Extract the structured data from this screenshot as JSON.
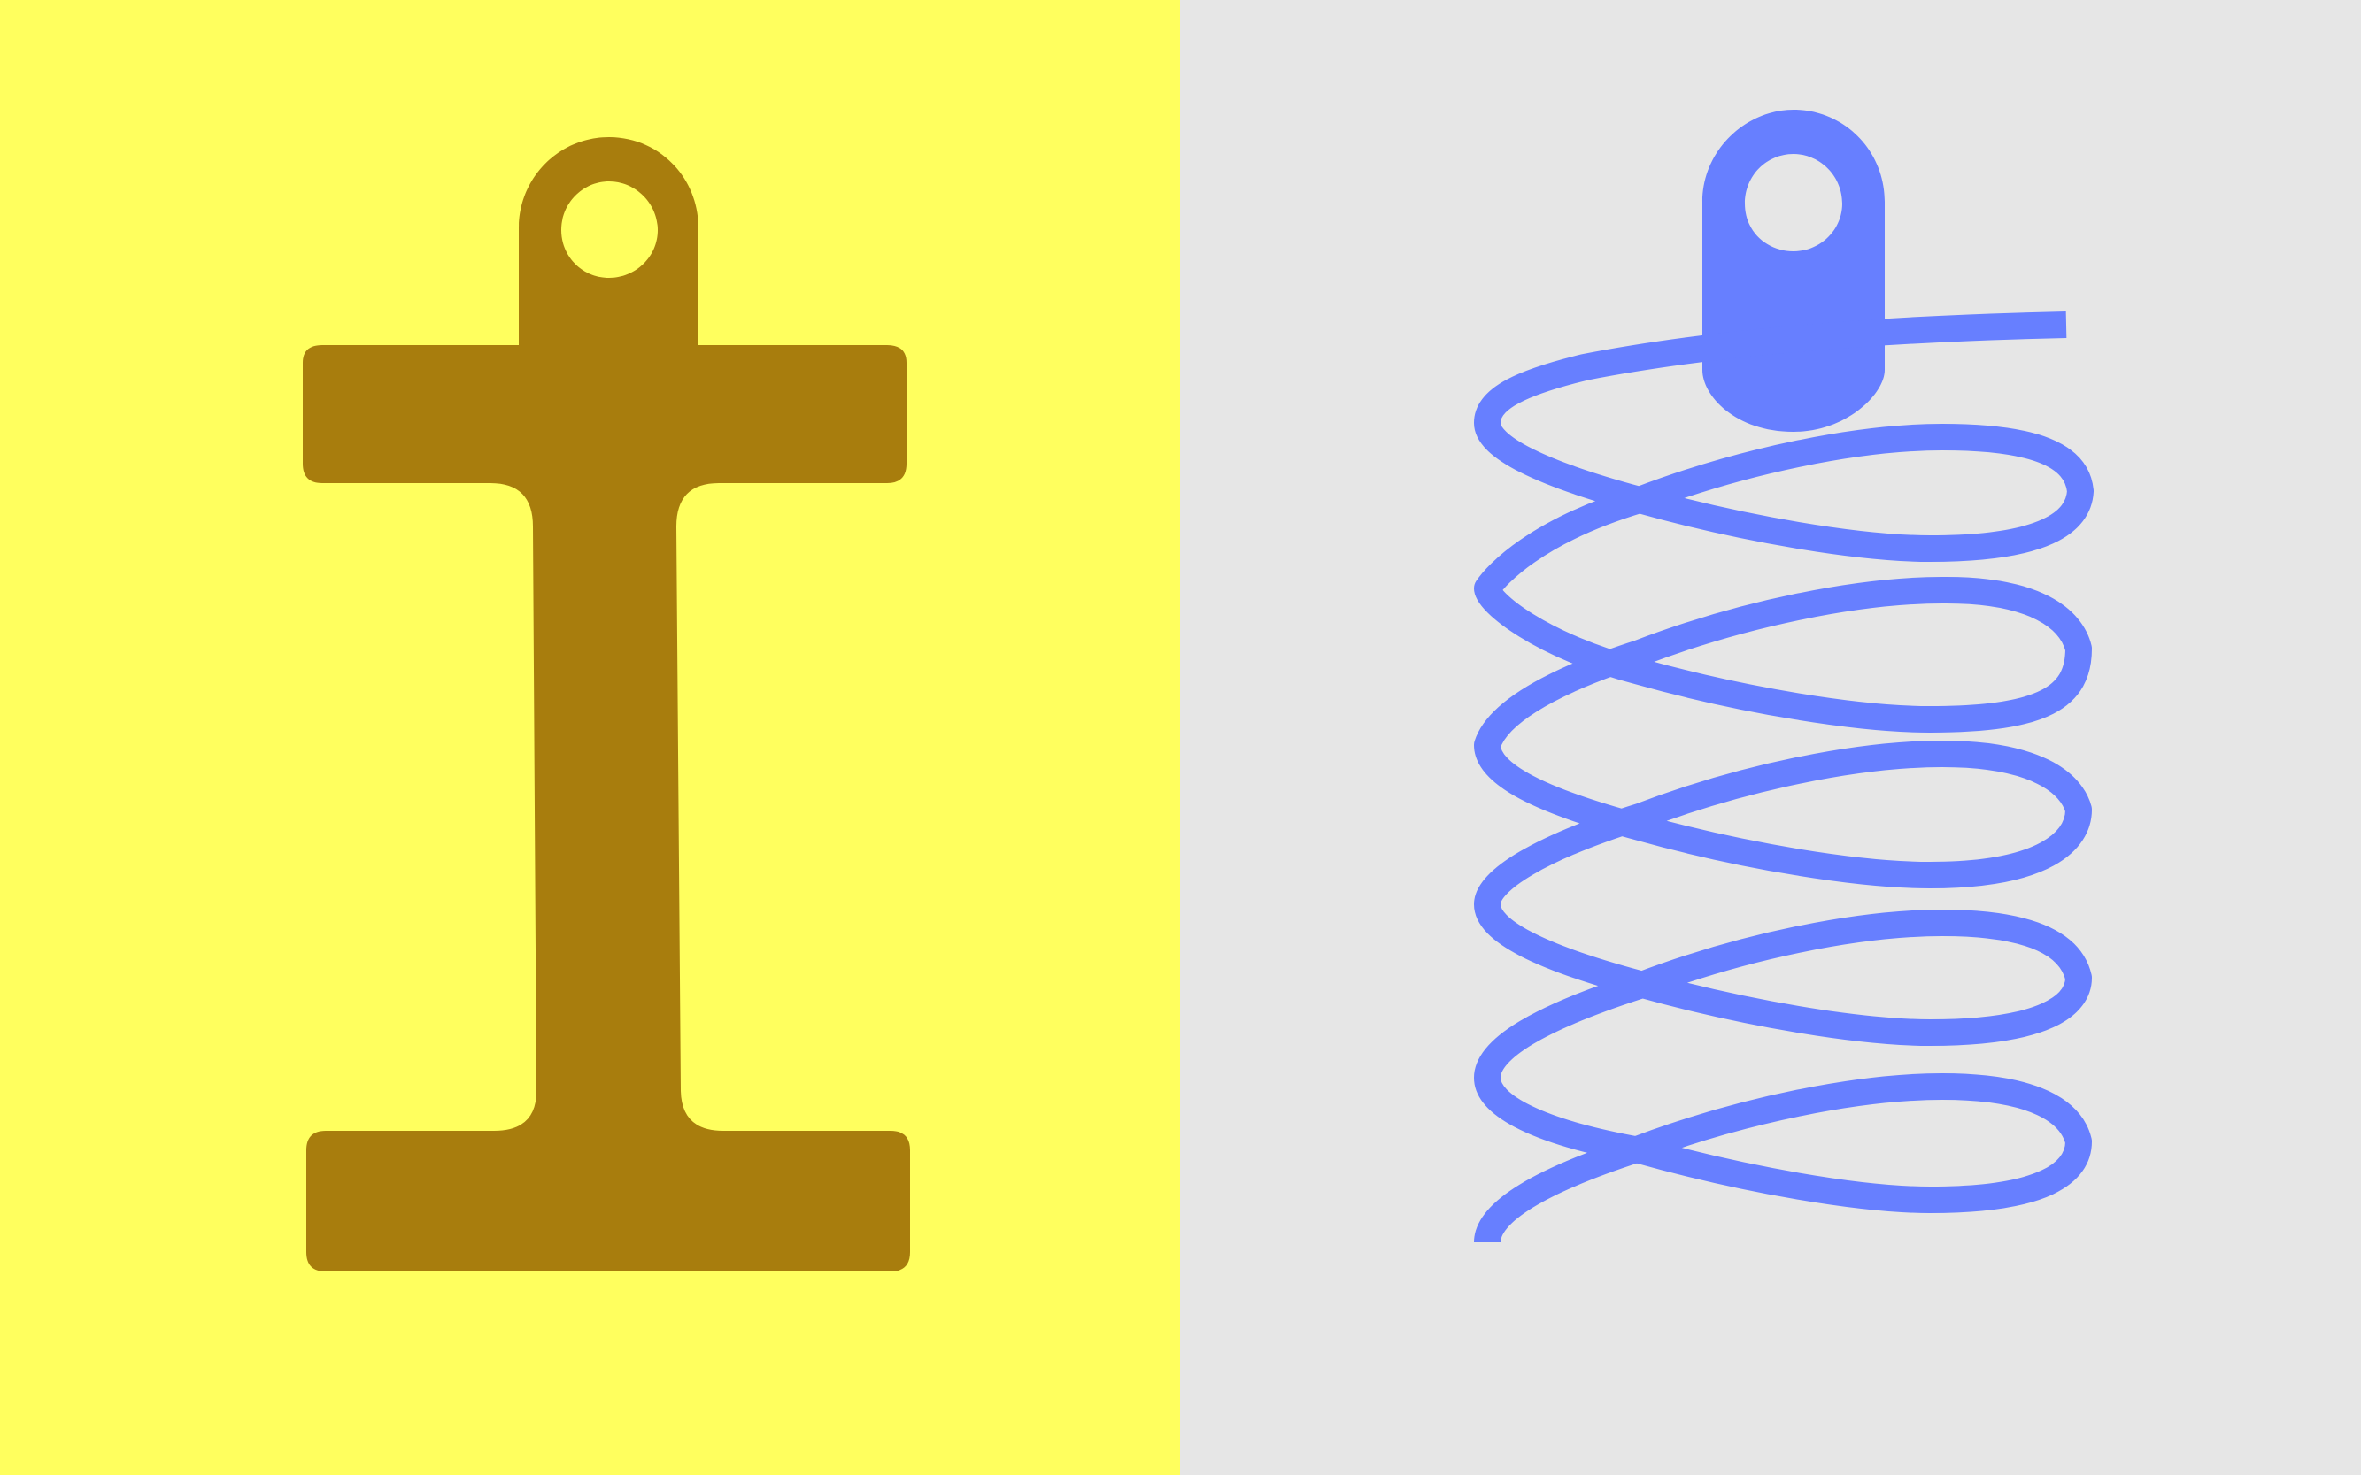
{
  "panels": [
    {
      "name": "left",
      "background": "#ffff5e",
      "figure": {
        "icon": "dumbbell-hanger-icon",
        "fill": "#a87d0d"
      }
    },
    {
      "name": "right",
      "background": "#e6e6e6",
      "figure": {
        "icon": "spring-coil-icon",
        "stroke": "#677fff",
        "fill": "#677fff"
      }
    }
  ]
}
